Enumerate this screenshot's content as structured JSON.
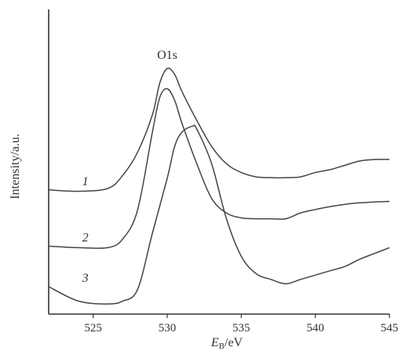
{
  "chart_data": {
    "type": "line",
    "title": "",
    "xlabel_main": "E",
    "xlabel_sub": "B",
    "xlabel_unit": "/eV",
    "ylabel": "Intensity/a.u.",
    "xlim": [
      522,
      545
    ],
    "ylim": [
      0,
      10
    ],
    "xticks": [
      525,
      530,
      535,
      540,
      545
    ],
    "grid": false,
    "annotation": "O1s",
    "annotation_x": 530,
    "series": [
      {
        "name": "1",
        "points": [
          [
            522,
            4.3
          ],
          [
            524,
            4.25
          ],
          [
            526,
            4.35
          ],
          [
            527,
            4.8
          ],
          [
            528,
            5.6
          ],
          [
            529,
            6.9
          ],
          [
            529.5,
            8.0
          ],
          [
            530,
            8.5
          ],
          [
            530.5,
            8.3
          ],
          [
            531,
            7.7
          ],
          [
            532,
            6.7
          ],
          [
            533,
            5.8
          ],
          [
            534,
            5.2
          ],
          [
            535,
            4.9
          ],
          [
            536,
            4.75
          ],
          [
            537,
            4.72
          ],
          [
            538,
            4.72
          ],
          [
            539,
            4.75
          ],
          [
            540,
            4.9
          ],
          [
            541,
            5.0
          ],
          [
            542,
            5.15
          ],
          [
            543,
            5.3
          ],
          [
            544,
            5.35
          ],
          [
            545,
            5.35
          ]
        ]
      },
      {
        "name": "2",
        "points": [
          [
            522,
            2.35
          ],
          [
            524,
            2.3
          ],
          [
            526,
            2.3
          ],
          [
            527,
            2.6
          ],
          [
            528,
            3.6
          ],
          [
            529,
            6.3
          ],
          [
            529.5,
            7.5
          ],
          [
            530,
            7.8
          ],
          [
            530.5,
            7.4
          ],
          [
            531,
            6.6
          ],
          [
            532,
            5.2
          ],
          [
            533,
            4.0
          ],
          [
            534,
            3.5
          ],
          [
            535,
            3.33
          ],
          [
            536,
            3.3
          ],
          [
            537,
            3.3
          ],
          [
            538,
            3.3
          ],
          [
            539,
            3.5
          ],
          [
            540,
            3.62
          ],
          [
            541,
            3.72
          ],
          [
            542,
            3.8
          ],
          [
            543,
            3.85
          ],
          [
            544,
            3.88
          ],
          [
            545,
            3.9
          ]
        ]
      },
      {
        "name": "3",
        "points": [
          [
            522,
            0.95
          ],
          [
            524,
            0.45
          ],
          [
            526,
            0.35
          ],
          [
            527,
            0.45
          ],
          [
            528,
            0.85
          ],
          [
            529,
            2.8
          ],
          [
            530,
            4.7
          ],
          [
            530.5,
            5.8
          ],
          [
            531,
            6.3
          ],
          [
            531.7,
            6.5
          ],
          [
            532,
            6.4
          ],
          [
            533,
            5.2
          ],
          [
            534,
            3.3
          ],
          [
            535,
            2.0
          ],
          [
            536,
            1.4
          ],
          [
            537,
            1.2
          ],
          [
            538,
            1.05
          ],
          [
            539,
            1.2
          ],
          [
            540,
            1.35
          ],
          [
            541,
            1.5
          ],
          [
            542,
            1.65
          ],
          [
            543,
            1.9
          ],
          [
            544,
            2.1
          ],
          [
            545,
            2.3
          ]
        ]
      }
    ]
  }
}
